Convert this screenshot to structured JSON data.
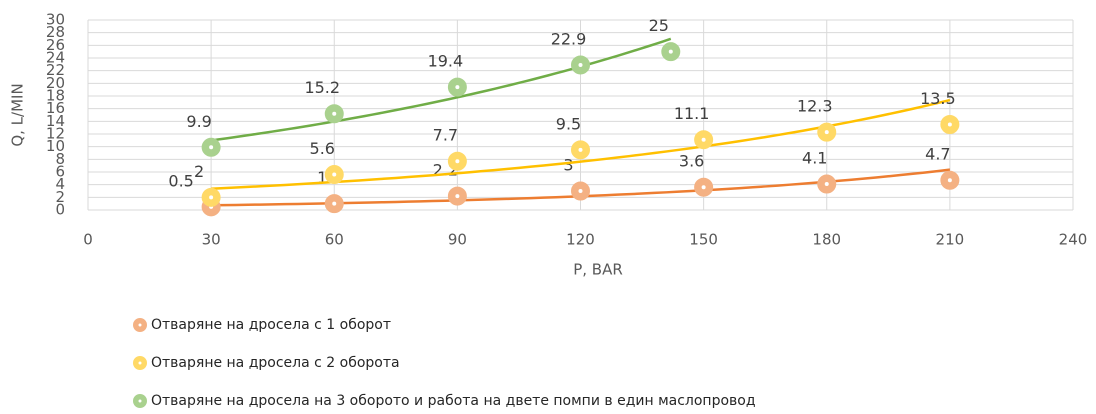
{
  "chart_data": {
    "type": "scatter",
    "xlabel": "P, BAR",
    "ylabel": "Q, L/MIN",
    "xlim": [
      0,
      240
    ],
    "xticks": [
      0,
      30,
      60,
      90,
      120,
      150,
      180,
      210,
      240
    ],
    "ylim": [
      0,
      30
    ],
    "yticks": [
      0,
      2,
      4,
      6,
      8,
      10,
      12,
      14,
      16,
      18,
      20,
      22,
      24,
      26,
      28,
      30
    ],
    "grid": true,
    "trendline": "exponential",
    "legend": "bottom",
    "series": [
      {
        "name": "Отваряне на дросела с 1 оборот",
        "color": "#ed7d31",
        "marker_color": "#f4b183",
        "x": [
          30,
          60,
          90,
          120,
          150,
          180,
          210
        ],
        "values": [
          0.5,
          1,
          2.2,
          3,
          3.6,
          4.1,
          4.7
        ]
      },
      {
        "name": "Отваряне на дросела с 2 оборота",
        "color": "#ffc000",
        "marker_color": "#ffd966",
        "x": [
          30,
          60,
          90,
          120,
          150,
          180,
          210
        ],
        "values": [
          2,
          5.6,
          7.7,
          9.5,
          11.1,
          12.3,
          13.5
        ]
      },
      {
        "name": "Отваряне на дросела на 3 оборото и работа на двете помпи в един маслопровод",
        "color": "#70ad47",
        "marker_color": "#a9d18e",
        "x": [
          30,
          60,
          90,
          120,
          142
        ],
        "values": [
          9.9,
          15.2,
          19.4,
          22.9,
          25
        ]
      }
    ]
  }
}
